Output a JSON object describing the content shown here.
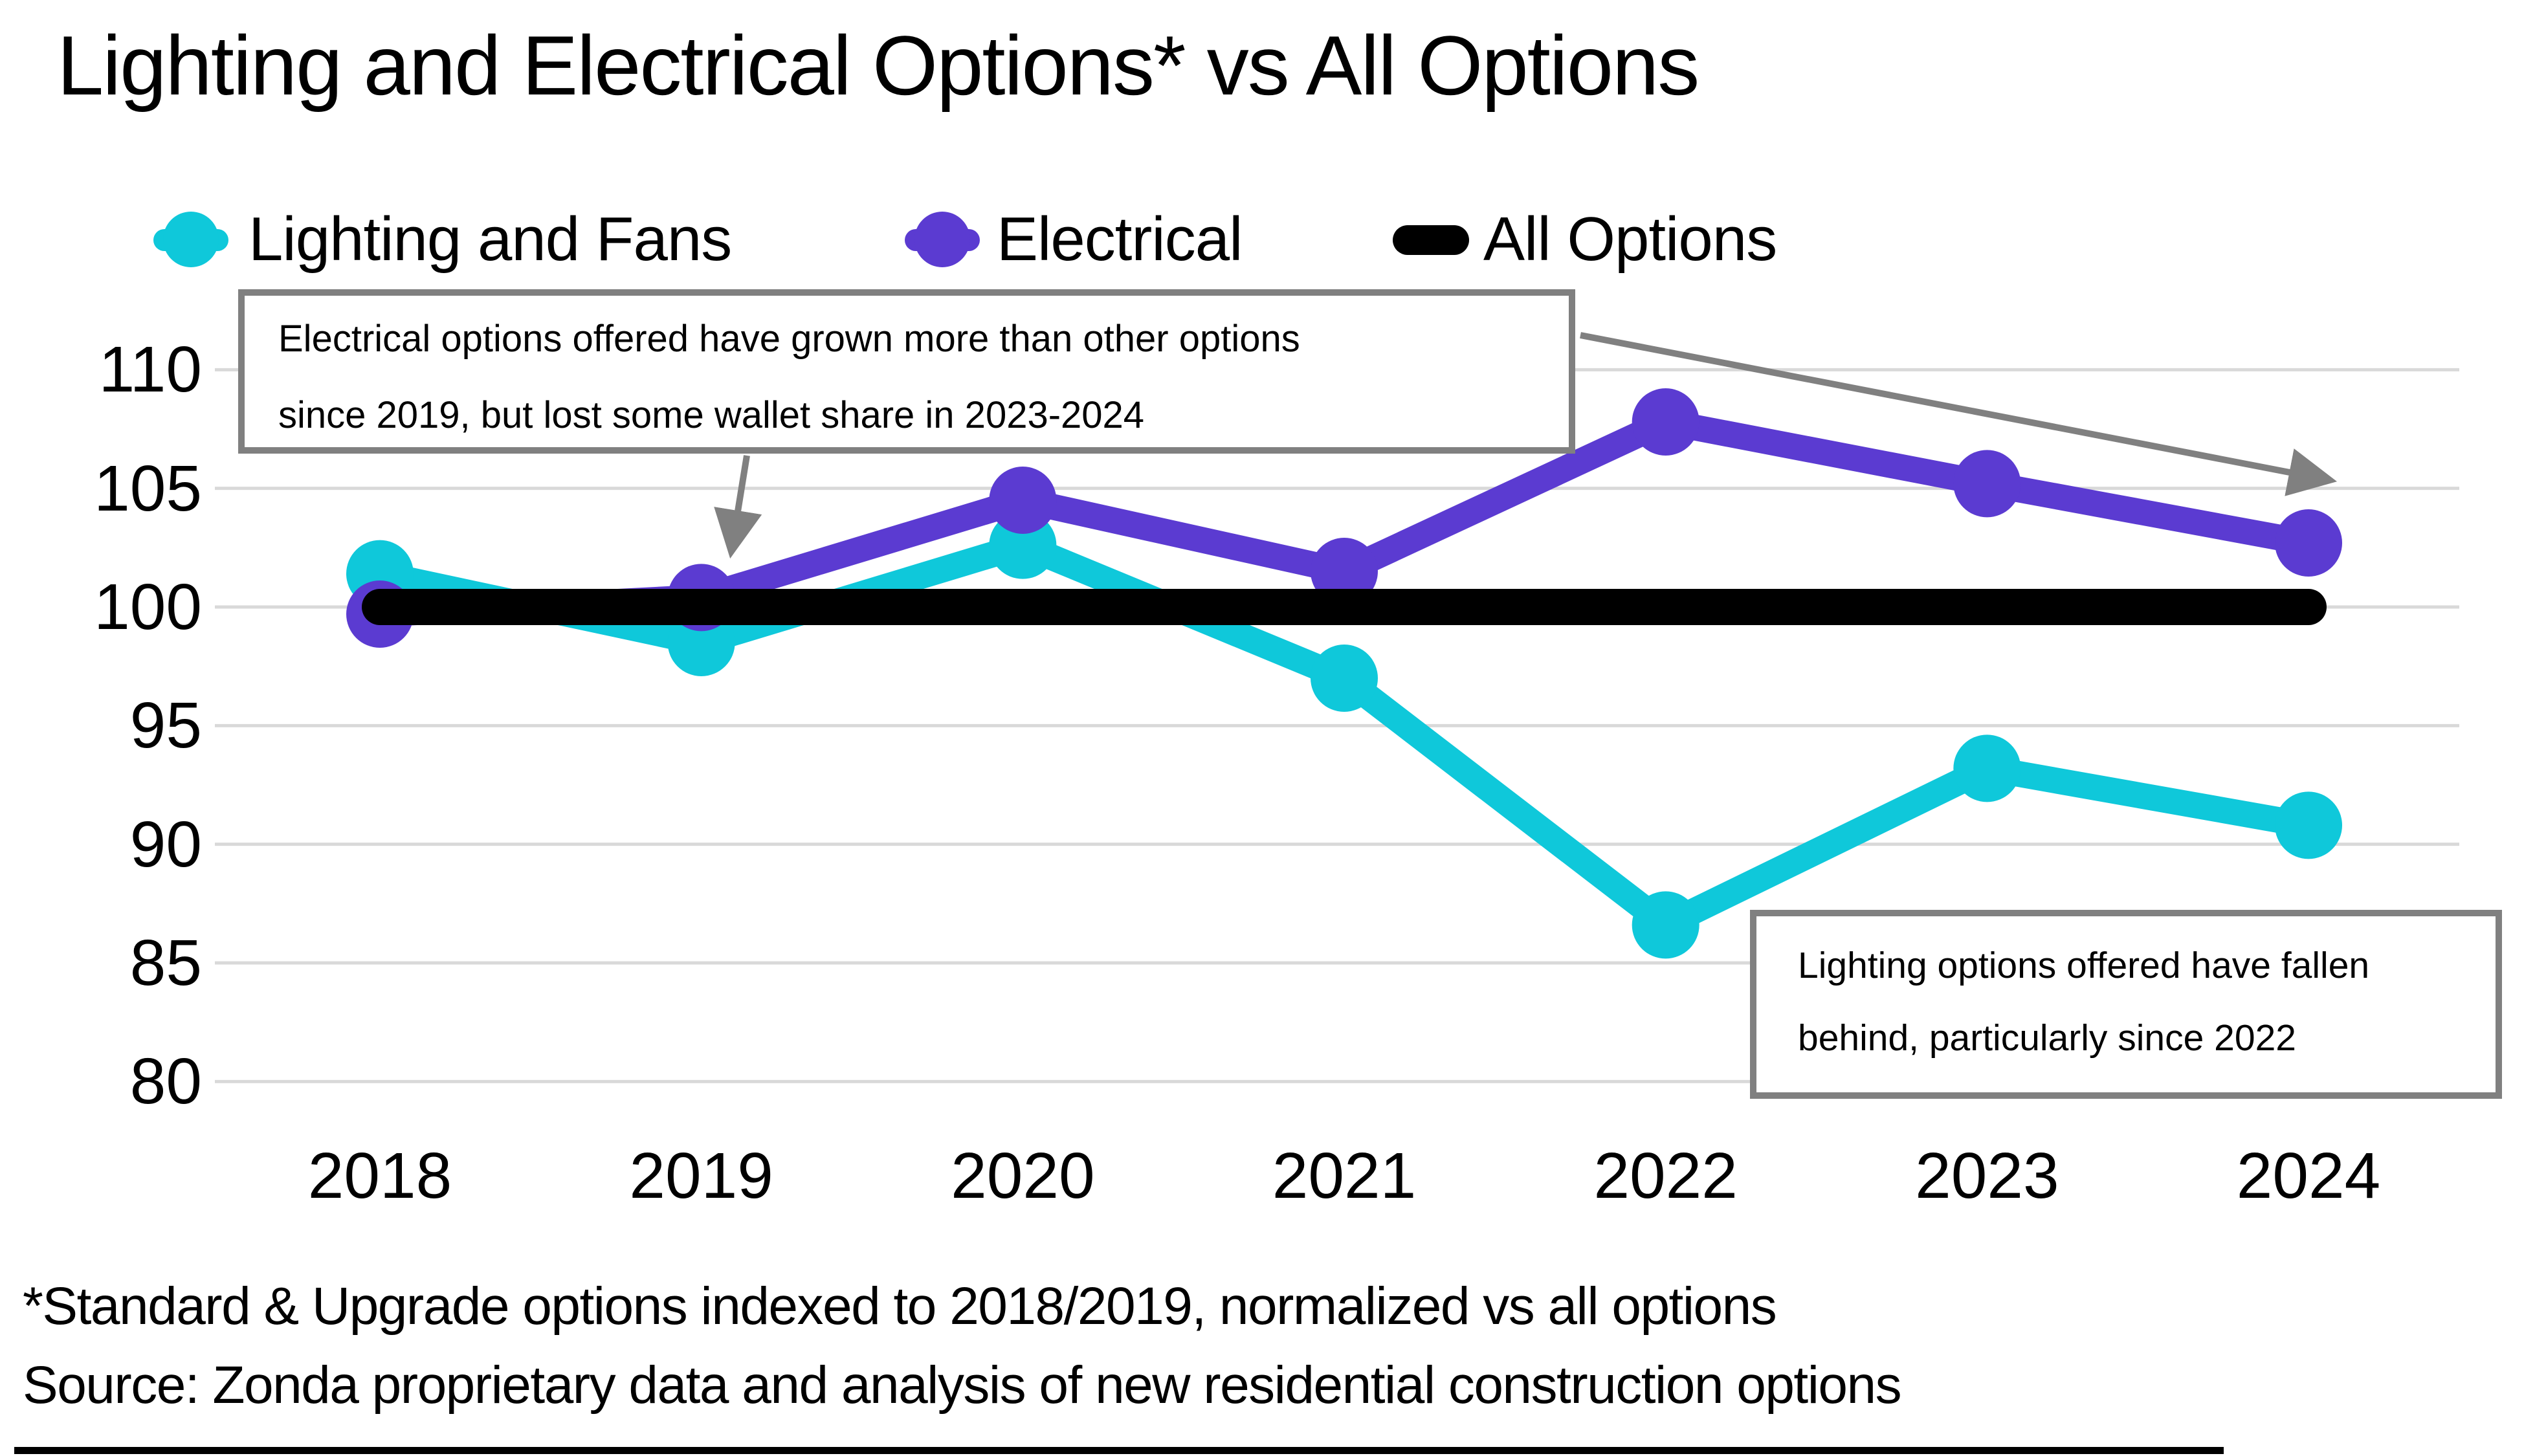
{
  "title": "Lighting and Electrical Options* vs All Options",
  "legend": {
    "items": [
      {
        "label": "Lighting and Fans",
        "color": "#0FC8DA",
        "marker": "line-circle"
      },
      {
        "label": "Electrical",
        "color": "#5B3BD1",
        "marker": "line-circle"
      },
      {
        "label": "All Options",
        "color": "#000000",
        "marker": "line"
      }
    ]
  },
  "annotations": {
    "electrical_note": {
      "lines": [
        "Electrical options offered have grown more than other options",
        "since 2019,  but lost some wallet share in 2023-2024"
      ]
    },
    "lighting_note": {
      "lines": [
        "Lighting options offered have fallen",
        "behind, particularly since 2022"
      ]
    }
  },
  "footnotes": {
    "index_note": "*Standard & Upgrade options indexed to 2018/2019, normalized vs all options",
    "source": "Source: Zonda proprietary data and analysis of new residential construction options"
  },
  "chart_data": {
    "type": "line",
    "categories": [
      "2018",
      "2019",
      "2020",
      "2021",
      "2022",
      "2023",
      "2024"
    ],
    "series": [
      {
        "name": "Lighting and Fans",
        "color": "#0FC8DA",
        "values": [
          101.4,
          98.5,
          102.6,
          97.0,
          86.6,
          93.2,
          90.8
        ]
      },
      {
        "name": "Electrical",
        "color": "#5B3BD1",
        "values": [
          99.7,
          100.4,
          104.5,
          101.5,
          107.8,
          105.2,
          102.7
        ]
      },
      {
        "name": "All Options",
        "color": "#000000",
        "values": [
          100,
          100,
          100,
          100,
          100,
          100,
          100
        ]
      }
    ],
    "yticks": [
      110,
      105,
      100,
      95,
      90,
      85,
      80
    ],
    "ylim": [
      78,
      112
    ],
    "grid": true,
    "gridline_color": "#D9D9D9",
    "annotation_arrow_color": "#808080",
    "legend_position": "top"
  }
}
